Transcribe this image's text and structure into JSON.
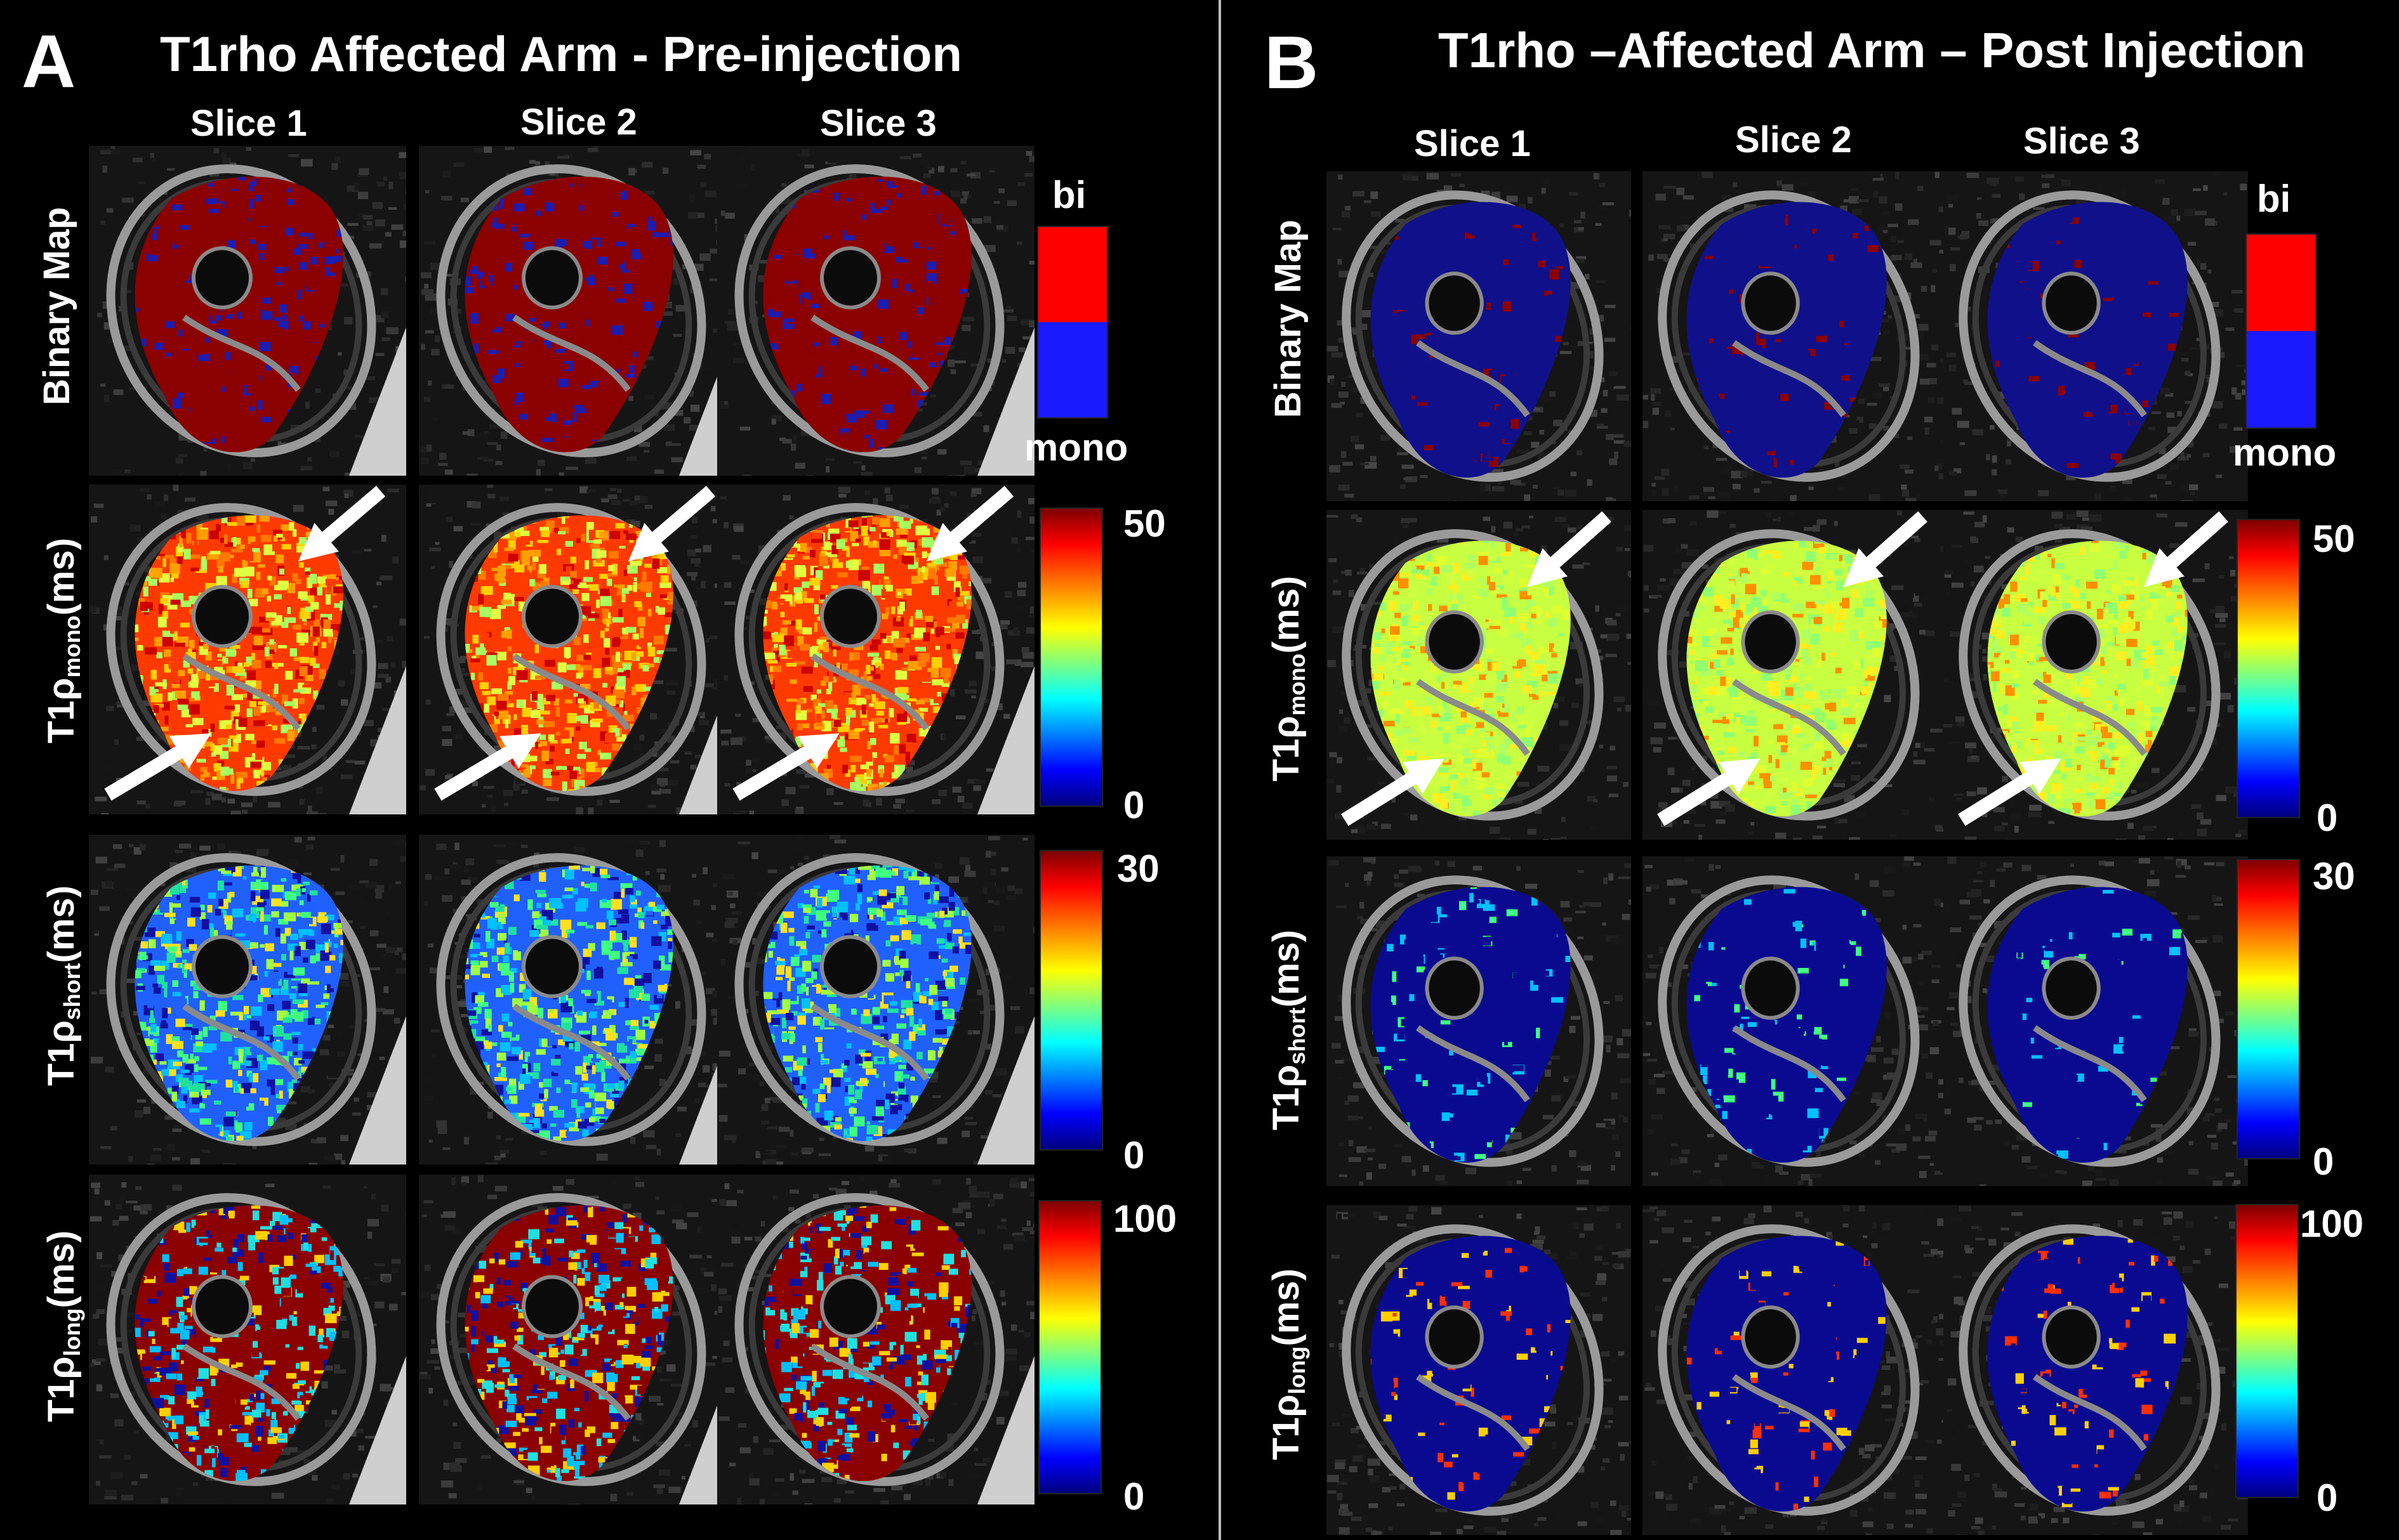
{
  "panels": [
    {
      "letter": "A",
      "title": "T1rho Affected Arm - Pre-injection",
      "slices": [
        "Slice 1",
        "Slice 2",
        "Slice 3"
      ],
      "rows": [
        {
          "label": "Binary Map",
          "colorbar": {
            "type": "binary",
            "top": "bi",
            "bottom": "mono"
          }
        },
        {
          "label_main": "T1ρ",
          "label_sub": "mono",
          "label_unit": "(ms)",
          "colorbar": {
            "type": "jet",
            "max": "50",
            "min": "0"
          }
        },
        {
          "label_main": "T1ρ",
          "label_sub": "short",
          "label_unit": "(ms)",
          "colorbar": {
            "type": "jet",
            "max": "30",
            "min": "0"
          }
        },
        {
          "label_main": "T1ρ",
          "label_sub": "long",
          "label_unit": "(ms)",
          "colorbar": {
            "type": "jet",
            "max": "100",
            "min": "0"
          }
        }
      ]
    },
    {
      "letter": "B",
      "title": "T1rho –Affected Arm – Post Injection",
      "slices": [
        "Slice 1",
        "Slice 2",
        "Slice 3"
      ],
      "rows": [
        {
          "label": "Binary Map",
          "colorbar": {
            "type": "binary",
            "top": "bi",
            "bottom": "mono"
          }
        },
        {
          "label_main": "T1ρ",
          "label_sub": "mono",
          "label_unit": "(ms)",
          "colorbar": {
            "type": "jet",
            "max": "50",
            "min": "0"
          }
        },
        {
          "label_main": "T1ρ",
          "label_sub": "short",
          "label_unit": "(ms)",
          "colorbar": {
            "type": "jet",
            "max": "30",
            "min": "0"
          }
        },
        {
          "label_main": "T1ρ",
          "label_sub": "long",
          "label_unit": "(ms)",
          "colorbar": {
            "type": "jet",
            "max": "100",
            "min": "0"
          }
        }
      ]
    }
  ],
  "colors": {
    "background": "#000000",
    "binary_bi": "#ff0000",
    "binary_mono": "#1a1aff",
    "map_dark_red": "#8b0000",
    "map_dark_blue": "#00008b",
    "arrow": "#ffffff"
  }
}
